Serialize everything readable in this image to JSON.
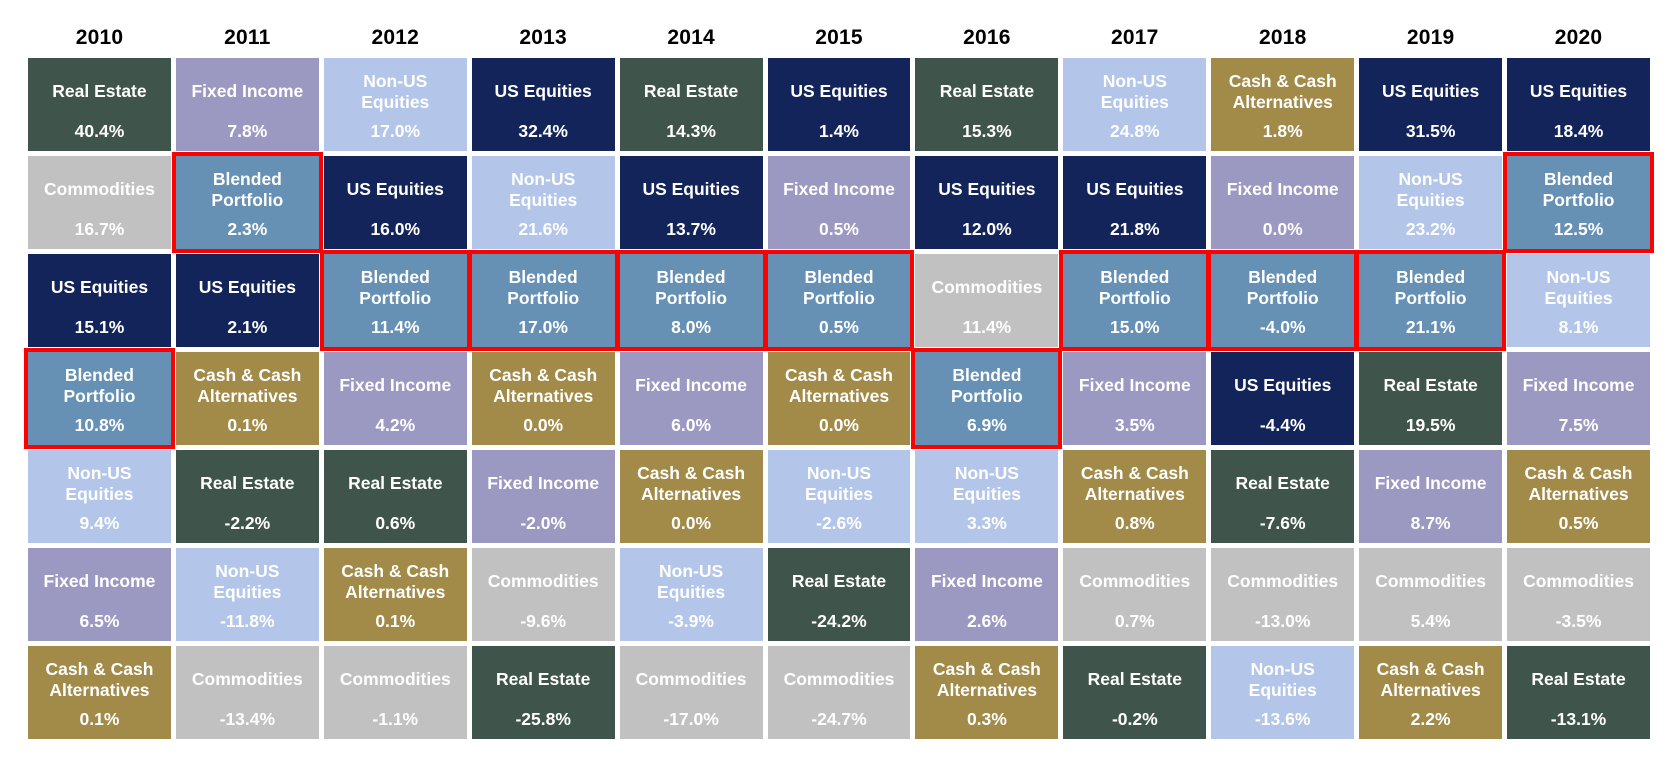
{
  "palette": {
    "real_estate": "#3F554B",
    "fixed_income": "#9B98C2",
    "non_us_equities": "#B3C6E9",
    "us_equities": "#13245A",
    "cash": "#A28A48",
    "commodities": "#C2C1C2",
    "blended_portfolio": "#6690B4",
    "highlight_border": "#FF0000",
    "cell_text": "#FFFFFF",
    "header_text": "#000000"
  },
  "chart_data": {
    "type": "table",
    "title": "",
    "description": "Annual asset class returns ranked best to worst per year; Blended Portfolio cells outlined in red",
    "years": [
      "2010",
      "2011",
      "2012",
      "2013",
      "2014",
      "2015",
      "2016",
      "2017",
      "2018",
      "2019",
      "2020"
    ],
    "columns": [
      {
        "year": "2010",
        "cells": [
          {
            "asset": "Real Estate",
            "type": "real_estate",
            "return_pct": 40.4,
            "display": "40.4%",
            "highlight": false
          },
          {
            "asset": "Commodities",
            "type": "commodities",
            "return_pct": 16.7,
            "display": "16.7%",
            "highlight": false
          },
          {
            "asset": "US Equities",
            "type": "us_equities",
            "return_pct": 15.1,
            "display": "15.1%",
            "highlight": false
          },
          {
            "asset": "Blended Portfolio",
            "type": "blended_portfolio",
            "return_pct": 10.8,
            "display": "10.8%",
            "highlight": true
          },
          {
            "asset": "Non-US Equities",
            "type": "non_us_equities",
            "return_pct": 9.4,
            "display": "9.4%",
            "highlight": false
          },
          {
            "asset": "Fixed Income",
            "type": "fixed_income",
            "return_pct": 6.5,
            "display": "6.5%",
            "highlight": false
          },
          {
            "asset": "Cash & Cash Alternatives",
            "type": "cash",
            "return_pct": 0.1,
            "display": "0.1%",
            "highlight": false
          }
        ]
      },
      {
        "year": "2011",
        "cells": [
          {
            "asset": "Fixed Income",
            "type": "fixed_income",
            "return_pct": 7.8,
            "display": "7.8%",
            "highlight": false
          },
          {
            "asset": "Blended Portfolio",
            "type": "blended_portfolio",
            "return_pct": 2.3,
            "display": "2.3%",
            "highlight": true
          },
          {
            "asset": "US Equities",
            "type": "us_equities",
            "return_pct": 2.1,
            "display": "2.1%",
            "highlight": false
          },
          {
            "asset": "Cash & Cash Alternatives",
            "type": "cash",
            "return_pct": 0.1,
            "display": "0.1%",
            "highlight": false
          },
          {
            "asset": "Real Estate",
            "type": "real_estate",
            "return_pct": -2.2,
            "display": "-2.2%",
            "highlight": false
          },
          {
            "asset": "Non-US Equities",
            "type": "non_us_equities",
            "return_pct": -11.8,
            "display": "-11.8%",
            "highlight": false
          },
          {
            "asset": "Commodities",
            "type": "commodities",
            "return_pct": -13.4,
            "display": "-13.4%",
            "highlight": false
          }
        ]
      },
      {
        "year": "2012",
        "cells": [
          {
            "asset": "Non-US Equities",
            "type": "non_us_equities",
            "return_pct": 17.0,
            "display": "17.0%",
            "highlight": false
          },
          {
            "asset": "US Equities",
            "type": "us_equities",
            "return_pct": 16.0,
            "display": "16.0%",
            "highlight": false
          },
          {
            "asset": "Blended Portfolio",
            "type": "blended_portfolio",
            "return_pct": 11.4,
            "display": "11.4%",
            "highlight": true
          },
          {
            "asset": "Fixed Income",
            "type": "fixed_income",
            "return_pct": 4.2,
            "display": "4.2%",
            "highlight": false
          },
          {
            "asset": "Real Estate",
            "type": "real_estate",
            "return_pct": 0.6,
            "display": "0.6%",
            "highlight": false
          },
          {
            "asset": "Cash & Cash Alternatives",
            "type": "cash",
            "return_pct": 0.1,
            "display": "0.1%",
            "highlight": false
          },
          {
            "asset": "Commodities",
            "type": "commodities",
            "return_pct": -1.1,
            "display": "-1.1%",
            "highlight": false
          }
        ]
      },
      {
        "year": "2013",
        "cells": [
          {
            "asset": "US Equities",
            "type": "us_equities",
            "return_pct": 32.4,
            "display": "32.4%",
            "highlight": false
          },
          {
            "asset": "Non-US Equities",
            "type": "non_us_equities",
            "return_pct": 21.6,
            "display": "21.6%",
            "highlight": false
          },
          {
            "asset": "Blended Portfolio",
            "type": "blended_portfolio",
            "return_pct": 17.0,
            "display": "17.0%",
            "highlight": true
          },
          {
            "asset": "Cash & Cash Alternatives",
            "type": "cash",
            "return_pct": 0.0,
            "display": "0.0%",
            "highlight": false
          },
          {
            "asset": "Fixed Income",
            "type": "fixed_income",
            "return_pct": -2.0,
            "display": "-2.0%",
            "highlight": false
          },
          {
            "asset": "Commodities",
            "type": "commodities",
            "return_pct": -9.6,
            "display": "-9.6%",
            "highlight": false
          },
          {
            "asset": "Real Estate",
            "type": "real_estate",
            "return_pct": -25.8,
            "display": "-25.8%",
            "highlight": false
          }
        ]
      },
      {
        "year": "2014",
        "cells": [
          {
            "asset": "Real Estate",
            "type": "real_estate",
            "return_pct": 14.3,
            "display": "14.3%",
            "highlight": false
          },
          {
            "asset": "US Equities",
            "type": "us_equities",
            "return_pct": 13.7,
            "display": "13.7%",
            "highlight": false
          },
          {
            "asset": "Blended Portfolio",
            "type": "blended_portfolio",
            "return_pct": 8.0,
            "display": "8.0%",
            "highlight": true
          },
          {
            "asset": "Fixed Income",
            "type": "fixed_income",
            "return_pct": 6.0,
            "display": "6.0%",
            "highlight": false
          },
          {
            "asset": "Cash & Cash Alternatives",
            "type": "cash",
            "return_pct": 0.0,
            "display": "0.0%",
            "highlight": false
          },
          {
            "asset": "Non-US Equities",
            "type": "non_us_equities",
            "return_pct": -3.9,
            "display": "-3.9%",
            "highlight": false
          },
          {
            "asset": "Commodities",
            "type": "commodities",
            "return_pct": -17.0,
            "display": "-17.0%",
            "highlight": false
          }
        ]
      },
      {
        "year": "2015",
        "cells": [
          {
            "asset": "US Equities",
            "type": "us_equities",
            "return_pct": 1.4,
            "display": "1.4%",
            "highlight": false
          },
          {
            "asset": "Fixed Income",
            "type": "fixed_income",
            "return_pct": 0.5,
            "display": "0.5%",
            "highlight": false
          },
          {
            "asset": "Blended Portfolio",
            "type": "blended_portfolio",
            "return_pct": 0.5,
            "display": "0.5%",
            "highlight": true
          },
          {
            "asset": "Cash & Cash Alternatives",
            "type": "cash",
            "return_pct": 0.0,
            "display": "0.0%",
            "highlight": false
          },
          {
            "asset": "Non-US Equities",
            "type": "non_us_equities",
            "return_pct": -2.6,
            "display": "-2.6%",
            "highlight": false
          },
          {
            "asset": "Real Estate",
            "type": "real_estate",
            "return_pct": -24.2,
            "display": "-24.2%",
            "highlight": false
          },
          {
            "asset": "Commodities",
            "type": "commodities",
            "return_pct": -24.7,
            "display": "-24.7%",
            "highlight": false
          }
        ]
      },
      {
        "year": "2016",
        "cells": [
          {
            "asset": "Real Estate",
            "type": "real_estate",
            "return_pct": 15.3,
            "display": "15.3%",
            "highlight": false
          },
          {
            "asset": "US Equities",
            "type": "us_equities",
            "return_pct": 12.0,
            "display": "12.0%",
            "highlight": false
          },
          {
            "asset": "Commodities",
            "type": "commodities",
            "return_pct": 11.4,
            "display": "11.4%",
            "highlight": false
          },
          {
            "asset": "Blended Portfolio",
            "type": "blended_portfolio",
            "return_pct": 6.9,
            "display": "6.9%",
            "highlight": true
          },
          {
            "asset": "Non-US Equities",
            "type": "non_us_equities",
            "return_pct": 3.3,
            "display": "3.3%",
            "highlight": false
          },
          {
            "asset": "Fixed Income",
            "type": "fixed_income",
            "return_pct": 2.6,
            "display": "2.6%",
            "highlight": false
          },
          {
            "asset": "Cash & Cash Alternatives",
            "type": "cash",
            "return_pct": 0.3,
            "display": "0.3%",
            "highlight": false
          }
        ]
      },
      {
        "year": "2017",
        "cells": [
          {
            "asset": "Non-US Equities",
            "type": "non_us_equities",
            "return_pct": 24.8,
            "display": "24.8%",
            "highlight": false
          },
          {
            "asset": "US Equities",
            "type": "us_equities",
            "return_pct": 21.8,
            "display": "21.8%",
            "highlight": false
          },
          {
            "asset": "Blended Portfolio",
            "type": "blended_portfolio",
            "return_pct": 15.0,
            "display": "15.0%",
            "highlight": true
          },
          {
            "asset": "Fixed Income",
            "type": "fixed_income",
            "return_pct": 3.5,
            "display": "3.5%",
            "highlight": false
          },
          {
            "asset": "Cash & Cash Alternatives",
            "type": "cash",
            "return_pct": 0.8,
            "display": "0.8%",
            "highlight": false
          },
          {
            "asset": "Commodities",
            "type": "commodities",
            "return_pct": 0.7,
            "display": "0.7%",
            "highlight": false
          },
          {
            "asset": "Real Estate",
            "type": "real_estate",
            "return_pct": -0.2,
            "display": "-0.2%",
            "highlight": false
          }
        ]
      },
      {
        "year": "2018",
        "cells": [
          {
            "asset": "Cash & Cash Alternatives",
            "type": "cash",
            "return_pct": 1.8,
            "display": "1.8%",
            "highlight": false
          },
          {
            "asset": "Fixed Income",
            "type": "fixed_income",
            "return_pct": 0.0,
            "display": "0.0%",
            "highlight": false
          },
          {
            "asset": "Blended Portfolio",
            "type": "blended_portfolio",
            "return_pct": -4.0,
            "display": "-4.0%",
            "highlight": true
          },
          {
            "asset": "US Equities",
            "type": "us_equities",
            "return_pct": -4.4,
            "display": "-4.4%",
            "highlight": false
          },
          {
            "asset": "Real Estate",
            "type": "real_estate",
            "return_pct": -7.6,
            "display": "-7.6%",
            "highlight": false
          },
          {
            "asset": "Commodities",
            "type": "commodities",
            "return_pct": -13.0,
            "display": "-13.0%",
            "highlight": false
          },
          {
            "asset": "Non-US Equities",
            "type": "non_us_equities",
            "return_pct": -13.6,
            "display": "-13.6%",
            "highlight": false
          }
        ]
      },
      {
        "year": "2019",
        "cells": [
          {
            "asset": "US Equities",
            "type": "us_equities",
            "return_pct": 31.5,
            "display": "31.5%",
            "highlight": false
          },
          {
            "asset": "Non-US Equities",
            "type": "non_us_equities",
            "return_pct": 23.2,
            "display": "23.2%",
            "highlight": false
          },
          {
            "asset": "Blended Portfolio",
            "type": "blended_portfolio",
            "return_pct": 21.1,
            "display": "21.1%",
            "highlight": true
          },
          {
            "asset": "Real Estate",
            "type": "real_estate",
            "return_pct": 19.5,
            "display": "19.5%",
            "highlight": false
          },
          {
            "asset": "Fixed Income",
            "type": "fixed_income",
            "return_pct": 8.7,
            "display": "8.7%",
            "highlight": false
          },
          {
            "asset": "Commodities",
            "type": "commodities",
            "return_pct": 5.4,
            "display": "5.4%",
            "highlight": false
          },
          {
            "asset": "Cash & Cash Alternatives",
            "type": "cash",
            "return_pct": 2.2,
            "display": "2.2%",
            "highlight": false
          }
        ]
      },
      {
        "year": "2020",
        "cells": [
          {
            "asset": "US Equities",
            "type": "us_equities",
            "return_pct": 18.4,
            "display": "18.4%",
            "highlight": false
          },
          {
            "asset": "Blended Portfolio",
            "type": "blended_portfolio",
            "return_pct": 12.5,
            "display": "12.5%",
            "highlight": true
          },
          {
            "asset": "Non-US Equities",
            "type": "non_us_equities",
            "return_pct": 8.1,
            "display": "8.1%",
            "highlight": false
          },
          {
            "asset": "Fixed Income",
            "type": "fixed_income",
            "return_pct": 7.5,
            "display": "7.5%",
            "highlight": false
          },
          {
            "asset": "Cash & Cash Alternatives",
            "type": "cash",
            "return_pct": 0.5,
            "display": "0.5%",
            "highlight": false
          },
          {
            "asset": "Commodities",
            "type": "commodities",
            "return_pct": -3.5,
            "display": "-3.5%",
            "highlight": false
          },
          {
            "asset": "Real Estate",
            "type": "real_estate",
            "return_pct": -13.1,
            "display": "-13.1%",
            "highlight": false
          }
        ]
      }
    ]
  }
}
